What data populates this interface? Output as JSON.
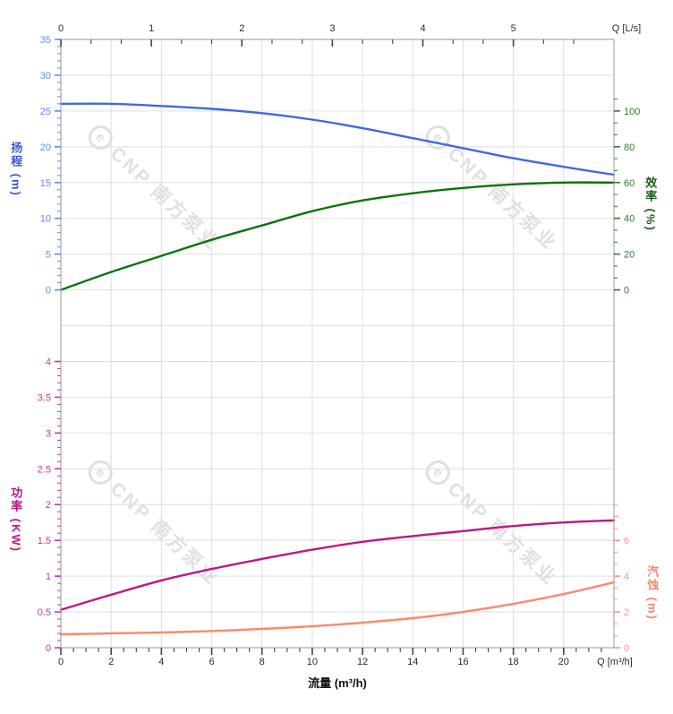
{
  "watermark": {
    "logo_letter": "e",
    "text": "CNP 南方泵业"
  },
  "chart_data": {
    "type": "line",
    "title": "",
    "x_label_bottom": "流量 (m³/h)",
    "x_unit_bottom": "Q [m³/h]",
    "x_unit_top": "Q [L/s]",
    "grid": "on",
    "x_m3h": [
      0,
      2,
      4,
      6,
      8,
      10,
      12,
      14,
      16,
      18,
      20,
      22
    ],
    "x_axis_bottom": {
      "range": [
        0,
        22
      ],
      "majors": [
        0,
        2,
        4,
        6,
        8,
        10,
        12,
        14,
        16,
        18,
        20
      ],
      "minor_step": 0.5,
      "label_color": "#2b2b2b"
    },
    "x_axis_top": {
      "range_ls": [
        0,
        6.1111
      ],
      "majors": [
        0,
        1,
        2,
        3,
        4,
        5
      ],
      "minor_step": 0.3333,
      "label_color": "#2b2b2b"
    },
    "axes": {
      "head": {
        "title": "扬程 (m)",
        "range": [
          0,
          35
        ],
        "majors": [
          0,
          5,
          10,
          15,
          20,
          25,
          30,
          35
        ],
        "minor_step": 1,
        "side": "left",
        "label_color": "#6287f2",
        "title_color": "#3c55d8"
      },
      "efficiency": {
        "title": "效率 (%)",
        "range": [
          0,
          107
        ],
        "majors": [
          0,
          20,
          40,
          60,
          80,
          100
        ],
        "minor_step": 6.67,
        "side": "right",
        "label_color": "#2f7d2f",
        "title_color": "#1c5e1c"
      },
      "power": {
        "title": "功率 (KW)",
        "range": [
          0,
          4
        ],
        "majors": [
          0,
          0.5,
          1,
          1.5,
          2,
          2.5,
          3,
          3.5,
          4
        ],
        "minor_step": 0.1,
        "side": "left",
        "label_color": "#cc33a0",
        "title_color": "#be1687"
      },
      "npsh": {
        "title": "汽蚀 (m)",
        "range": [
          0,
          8
        ],
        "majors": [
          0,
          2,
          4,
          6
        ],
        "minor_step": 0.667,
        "side": "right",
        "label_color": "#f9947f",
        "title_color": "#f8876d"
      }
    },
    "series": [
      {
        "name": "扬程",
        "axis": "head",
        "color": "#4169e1",
        "values": [
          26.0,
          26.0,
          25.7,
          25.3,
          24.7,
          23.8,
          22.6,
          21.2,
          19.8,
          18.4,
          17.2,
          16.1
        ]
      },
      {
        "name": "效率",
        "axis": "efficiency",
        "color": "#0c730c",
        "values": [
          0,
          10,
          19,
          28,
          36,
          44,
          50,
          54,
          57,
          59,
          60,
          60
        ]
      },
      {
        "name": "功率",
        "axis": "power",
        "color": "#be1687",
        "values": [
          0.53,
          0.74,
          0.94,
          1.1,
          1.24,
          1.37,
          1.48,
          1.56,
          1.63,
          1.7,
          1.75,
          1.78
        ]
      },
      {
        "name": "汽蚀",
        "axis": "npsh",
        "color": "#f88a70",
        "values": [
          0.75,
          0.8,
          0.85,
          0.93,
          1.05,
          1.2,
          1.4,
          1.65,
          2.0,
          2.45,
          3.0,
          3.65
        ]
      }
    ],
    "colors": {
      "grid": "#dedede",
      "border": "#a9a9a9",
      "tick_dark": "#444444",
      "bottom_label": "#111111"
    }
  }
}
